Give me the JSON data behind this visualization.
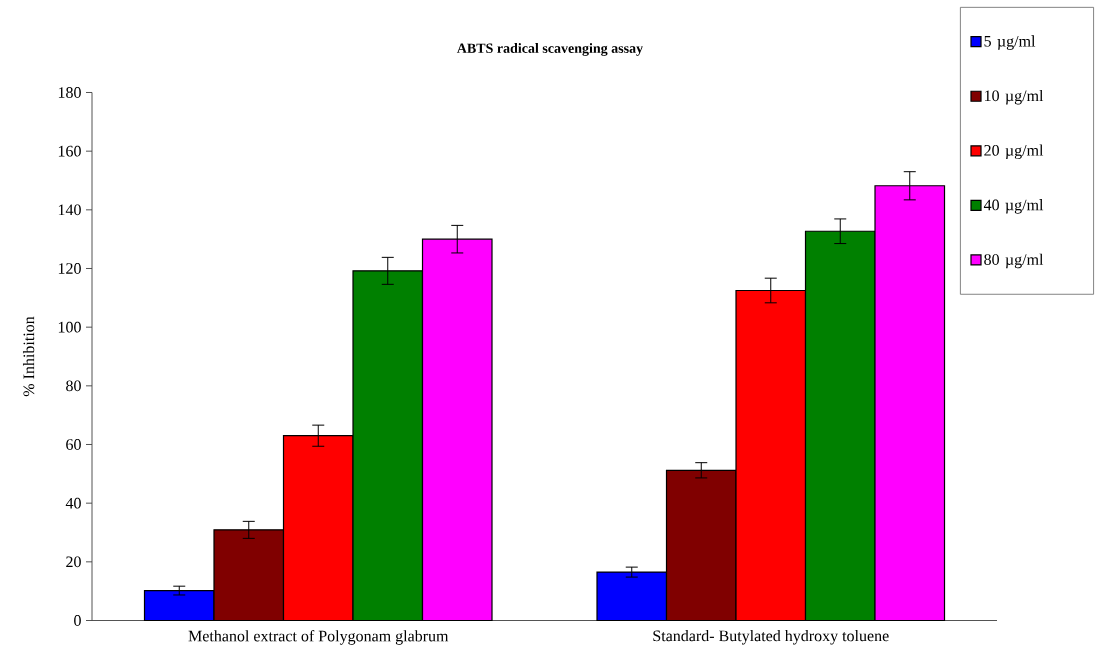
{
  "chart_data": {
    "type": "bar",
    "title": "ABTS radical scavenging assay",
    "ylabel": "% Inhibition",
    "categories": [
      "Methanol extract of Polygonam glabrum",
      "Standard- Butylated hydroxy toluene"
    ],
    "series": [
      {
        "name": "5 µg/ml",
        "color": "#0000ff",
        "values": [
          10.2,
          16.5
        ],
        "errors": [
          1.5,
          1.7
        ]
      },
      {
        "name": "10 µg/ml",
        "color": "#800000",
        "values": [
          30.9,
          51.2
        ],
        "errors": [
          2.9,
          2.6
        ]
      },
      {
        "name": "20 µg/ml",
        "color": "#ff0000",
        "values": [
          63.0,
          112.5
        ],
        "errors": [
          3.6,
          4.2
        ]
      },
      {
        "name": "40 µg/ml",
        "color": "#008000",
        "values": [
          119.2,
          132.7
        ],
        "errors": [
          4.6,
          4.2
        ]
      },
      {
        "name": "80 µg/ml",
        "color": "#ff00ff",
        "values": [
          130.0,
          148.2
        ],
        "errors": [
          4.7,
          4.8
        ]
      }
    ],
    "ylim": [
      0,
      180
    ],
    "yticks": [
      0,
      20,
      40,
      60,
      80,
      100,
      120,
      140,
      160,
      180
    ],
    "legend": "top right",
    "grid": false
  }
}
